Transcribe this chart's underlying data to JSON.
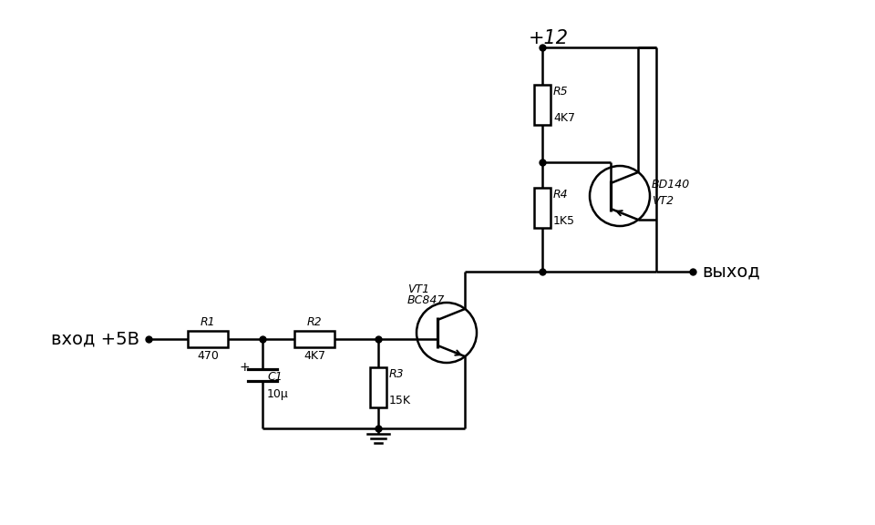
{
  "bg_color": "#ffffff",
  "line_color": "#000000",
  "line_width": 1.8,
  "dot_size": 5,
  "labels": {
    "input": "вход +5В",
    "output": "выход",
    "power": "+12"
  },
  "components": {
    "R1": "470",
    "R2": "4K7",
    "R3": "15K",
    "R4": "1K5",
    "R5": "4K7",
    "C1": "10μ",
    "VT1_name": "VT1",
    "VT1_type": "BC847",
    "VT2_name": "VT2",
    "VT2_type": "BD140"
  }
}
